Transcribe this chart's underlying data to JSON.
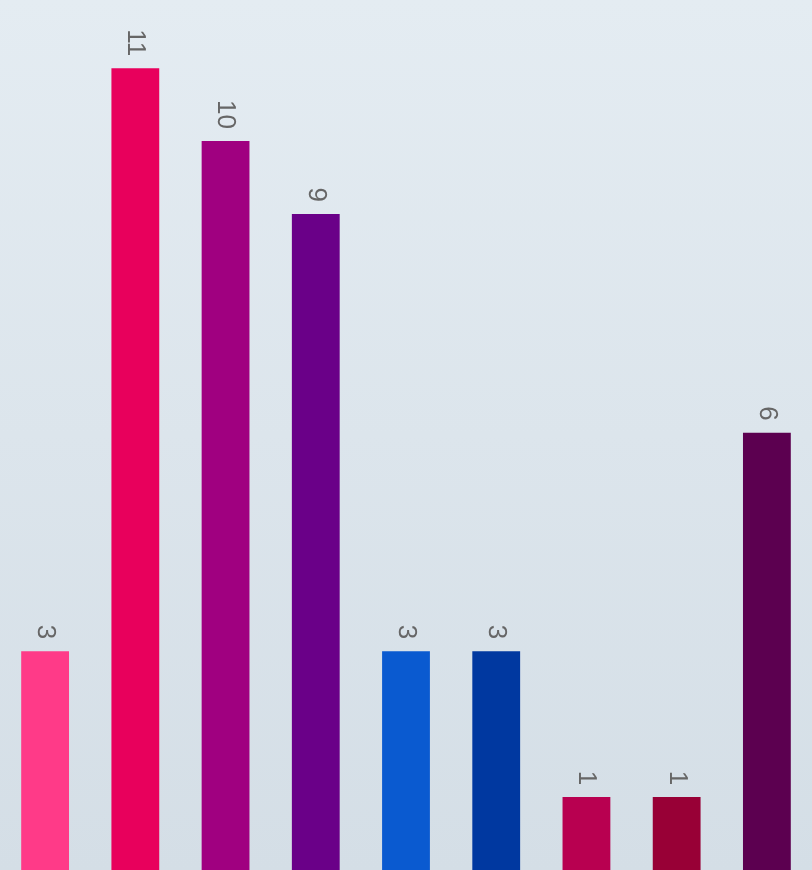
{
  "chart_data": {
    "type": "bar",
    "categories": [
      null,
      null,
      null,
      null,
      null,
      null,
      null,
      null,
      null
    ],
    "values": [
      3,
      11,
      10,
      9,
      3,
      3,
      1,
      1,
      6
    ],
    "colors": [
      "#ff3a88",
      "#e8005c",
      "#a00080",
      "#6a0088",
      "#0a5ad0",
      "#0038a0",
      "#b80050",
      "#980036",
      "#5c0050"
    ],
    "data_labels": true
  }
}
